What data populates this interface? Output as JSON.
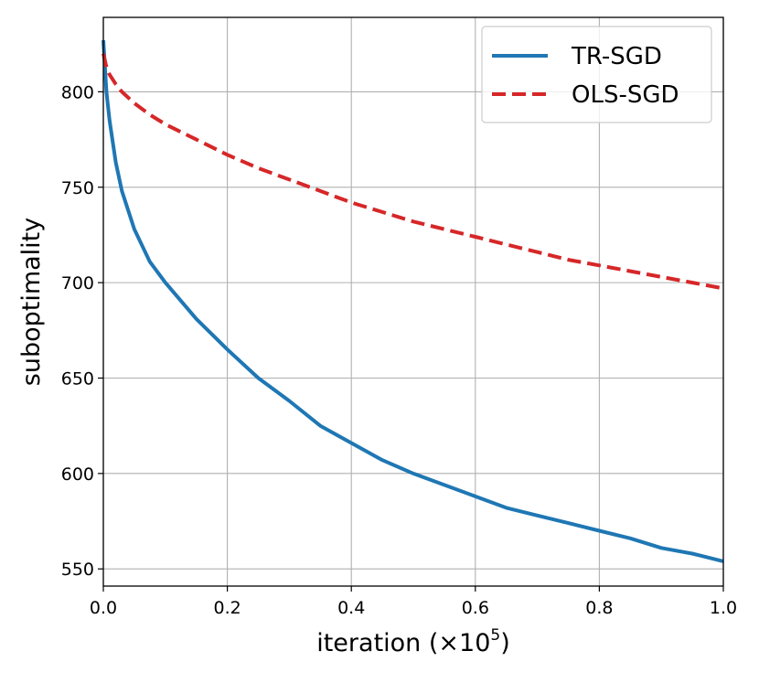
{
  "chart_data": {
    "type": "line",
    "title": "",
    "xlabel": "iteration (×10",
    "xlabel_exponent": "5",
    "xlabel_close": ")",
    "ylabel": "suboptimality",
    "xlim": [
      0.0,
      1.0
    ],
    "ylim": [
      541,
      839
    ],
    "xticks": [
      0.0,
      0.2,
      0.4,
      0.6,
      0.8,
      1.0
    ],
    "xtick_labels": [
      "0.0",
      "0.2",
      "0.4",
      "0.6",
      "0.8",
      "1.0"
    ],
    "yticks": [
      550,
      600,
      650,
      700,
      750,
      800
    ],
    "ytick_labels": [
      "550",
      "600",
      "650",
      "700",
      "750",
      "800"
    ],
    "grid": true,
    "legend_position": "top-right",
    "series": [
      {
        "name": "TR-SGD",
        "color": "#1f77b4",
        "dash": "solid",
        "x": [
          0.0,
          0.005,
          0.01,
          0.02,
          0.03,
          0.05,
          0.075,
          0.1,
          0.15,
          0.2,
          0.25,
          0.3,
          0.35,
          0.4,
          0.45,
          0.5,
          0.55,
          0.6,
          0.65,
          0.7,
          0.75,
          0.8,
          0.85,
          0.9,
          0.95,
          1.0
        ],
        "y": [
          827,
          800,
          785,
          763,
          748,
          728,
          711,
          700,
          681,
          665,
          650,
          638,
          625,
          616,
          607,
          600,
          594,
          588,
          582,
          578,
          574,
          570,
          566,
          561,
          558,
          554
        ]
      },
      {
        "name": "OLS-SGD",
        "color": "#d62728",
        "dash": "dashed",
        "x": [
          0.0,
          0.005,
          0.01,
          0.02,
          0.03,
          0.05,
          0.075,
          0.1,
          0.15,
          0.2,
          0.25,
          0.3,
          0.35,
          0.4,
          0.45,
          0.5,
          0.55,
          0.6,
          0.65,
          0.7,
          0.75,
          0.8,
          0.85,
          0.9,
          0.95,
          1.0
        ],
        "y": [
          820,
          813,
          809,
          804,
          800,
          794,
          788,
          783,
          775,
          767,
          760,
          754,
          748,
          742,
          737,
          732,
          728,
          724,
          720,
          716,
          712,
          709,
          706,
          703,
          700,
          697
        ]
      }
    ]
  }
}
